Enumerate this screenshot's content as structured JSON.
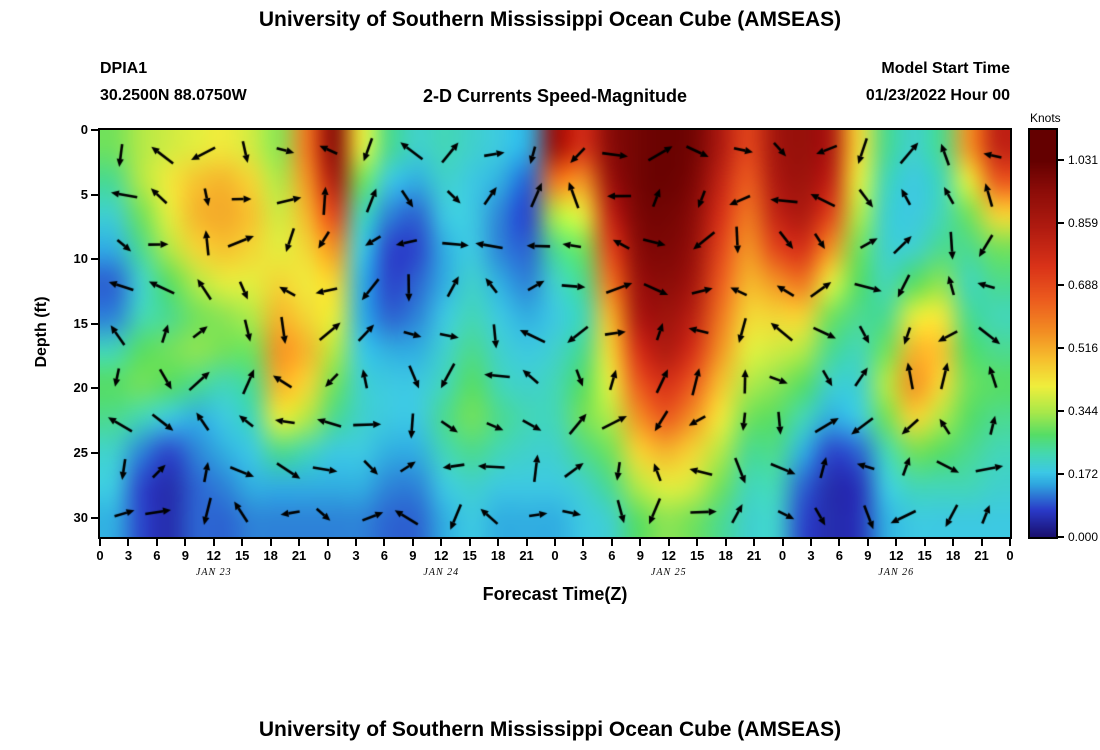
{
  "page": {
    "main_title": "University of Southern Mississippi Ocean Cube (AMSEAS)",
    "bottom_title": "University of Southern Mississippi Ocean Cube (AMSEAS)"
  },
  "header": {
    "station_id": "DPIA1",
    "coordinates": "30.2500N  88.0750W",
    "subtitle": "2-D Currents Speed-Magnitude",
    "model_start_label": "Model Start Time",
    "model_start_value": "01/23/2022 Hour 00"
  },
  "chart_data": {
    "type": "heatmap",
    "title": "2-D Currents Speed-Magnitude",
    "xlabel": "Forecast Time(Z)",
    "ylabel": "Depth (ft)",
    "units": "Knots",
    "x_range_hours": [
      0,
      96
    ],
    "x_tick_labels": [
      "0",
      "3",
      "6",
      "9",
      "12",
      "15",
      "18",
      "21",
      "0",
      "3",
      "6",
      "9",
      "12",
      "15",
      "18",
      "21",
      "0",
      "3",
      "6",
      "9",
      "12",
      "15",
      "18",
      "21",
      "0",
      "3",
      "6",
      "9",
      "12",
      "15",
      "18",
      "21",
      "0"
    ],
    "day_labels": [
      "JAN 23",
      "JAN 24",
      "JAN 25",
      "JAN 26"
    ],
    "day_label_center_hours": [
      12,
      36,
      60,
      84
    ],
    "y_ticks_ft": [
      0,
      5,
      10,
      15,
      20,
      25,
      30
    ],
    "depth_range_ft": [
      0,
      31.5
    ],
    "colorbar": {
      "title": "Knots",
      "ticks": [
        0.0,
        0.172,
        0.344,
        0.516,
        0.688,
        0.859,
        1.031
      ],
      "value_max": 1.031,
      "bar_max": 1.113
    },
    "colormap_stops": [
      [
        0.0,
        "#191070"
      ],
      [
        0.07,
        "#2a3ac8"
      ],
      [
        0.14,
        "#2fa8e0"
      ],
      [
        0.17,
        "#3cc8e6"
      ],
      [
        0.22,
        "#44d8b0"
      ],
      [
        0.27,
        "#55dd66"
      ],
      [
        0.33,
        "#a8e84a"
      ],
      [
        0.4,
        "#f0ee3c"
      ],
      [
        0.47,
        "#f6c02e"
      ],
      [
        0.55,
        "#f28a22"
      ],
      [
        0.63,
        "#ec5b1e"
      ],
      [
        0.72,
        "#d93218"
      ],
      [
        0.82,
        "#b01b10"
      ],
      [
        0.92,
        "#8c0c08"
      ],
      [
        1.0,
        "#640000"
      ]
    ],
    "grid": {
      "cols": 33,
      "rows": 12,
      "hours_step": 3,
      "row_depths_ft": [
        0,
        3,
        6,
        9,
        12,
        15,
        18,
        21,
        24,
        27,
        30,
        32
      ],
      "values": [
        [
          0.3,
          0.35,
          0.38,
          0.4,
          0.42,
          0.38,
          0.32,
          0.6,
          0.95,
          0.4,
          0.25,
          0.2,
          0.22,
          0.2,
          0.18,
          0.15,
          0.9,
          0.75,
          0.95,
          1.0,
          1.02,
          1.0,
          0.85,
          0.7,
          0.88,
          0.92,
          0.85,
          0.45,
          0.25,
          0.2,
          0.25,
          0.55,
          0.8
        ],
        [
          0.25,
          0.35,
          0.42,
          0.48,
          0.5,
          0.45,
          0.35,
          0.55,
          0.85,
          0.3,
          0.18,
          0.15,
          0.2,
          0.18,
          0.15,
          0.1,
          0.6,
          0.55,
          0.9,
          1.0,
          1.02,
          0.98,
          0.8,
          0.65,
          0.85,
          0.9,
          0.8,
          0.4,
          0.22,
          0.18,
          0.22,
          0.4,
          0.65
        ],
        [
          0.2,
          0.3,
          0.4,
          0.5,
          0.52,
          0.48,
          0.38,
          0.5,
          0.7,
          0.22,
          0.12,
          0.1,
          0.18,
          0.18,
          0.12,
          0.08,
          0.35,
          0.4,
          0.8,
          0.98,
          1.0,
          0.95,
          0.75,
          0.6,
          0.8,
          0.85,
          0.7,
          0.35,
          0.2,
          0.18,
          0.22,
          0.3,
          0.45
        ],
        [
          0.15,
          0.25,
          0.35,
          0.45,
          0.48,
          0.45,
          0.4,
          0.45,
          0.55,
          0.18,
          0.08,
          0.08,
          0.15,
          0.18,
          0.12,
          0.1,
          0.25,
          0.3,
          0.7,
          0.95,
          0.98,
          0.92,
          0.7,
          0.55,
          0.7,
          0.75,
          0.55,
          0.3,
          0.2,
          0.2,
          0.25,
          0.25,
          0.3
        ],
        [
          0.1,
          0.2,
          0.28,
          0.35,
          0.4,
          0.4,
          0.45,
          0.42,
          0.45,
          0.15,
          0.08,
          0.1,
          0.15,
          0.2,
          0.15,
          0.12,
          0.2,
          0.25,
          0.6,
          0.9,
          0.95,
          0.88,
          0.65,
          0.5,
          0.55,
          0.6,
          0.4,
          0.28,
          0.22,
          0.28,
          0.32,
          0.22,
          0.25
        ],
        [
          0.12,
          0.22,
          0.25,
          0.3,
          0.32,
          0.35,
          0.5,
          0.45,
          0.4,
          0.15,
          0.1,
          0.12,
          0.18,
          0.22,
          0.18,
          0.15,
          0.18,
          0.22,
          0.5,
          0.85,
          0.9,
          0.82,
          0.6,
          0.45,
          0.45,
          0.45,
          0.3,
          0.25,
          0.25,
          0.4,
          0.42,
          0.25,
          0.22
        ],
        [
          0.22,
          0.28,
          0.3,
          0.32,
          0.3,
          0.3,
          0.55,
          0.5,
          0.35,
          0.18,
          0.15,
          0.15,
          0.2,
          0.25,
          0.2,
          0.18,
          0.2,
          0.25,
          0.45,
          0.75,
          0.85,
          0.75,
          0.55,
          0.4,
          0.38,
          0.35,
          0.25,
          0.22,
          0.3,
          0.5,
          0.48,
          0.28,
          0.25
        ],
        [
          0.28,
          0.3,
          0.28,
          0.25,
          0.22,
          0.25,
          0.5,
          0.45,
          0.3,
          0.2,
          0.18,
          0.18,
          0.22,
          0.28,
          0.22,
          0.2,
          0.22,
          0.28,
          0.4,
          0.65,
          0.75,
          0.65,
          0.48,
          0.35,
          0.32,
          0.28,
          0.2,
          0.2,
          0.35,
          0.55,
          0.45,
          0.3,
          0.28
        ],
        [
          0.25,
          0.22,
          0.18,
          0.15,
          0.18,
          0.22,
          0.4,
          0.35,
          0.25,
          0.2,
          0.18,
          0.18,
          0.25,
          0.3,
          0.25,
          0.22,
          0.22,
          0.3,
          0.35,
          0.55,
          0.65,
          0.55,
          0.42,
          0.3,
          0.28,
          0.22,
          0.15,
          0.18,
          0.3,
          0.45,
          0.35,
          0.28,
          0.25
        ],
        [
          0.2,
          0.12,
          0.08,
          0.12,
          0.15,
          0.18,
          0.25,
          0.22,
          0.18,
          0.18,
          0.15,
          0.15,
          0.22,
          0.25,
          0.22,
          0.2,
          0.2,
          0.25,
          0.3,
          0.45,
          0.5,
          0.45,
          0.35,
          0.25,
          0.25,
          0.15,
          0.08,
          0.1,
          0.22,
          0.3,
          0.28,
          0.25,
          0.22
        ],
        [
          0.18,
          0.08,
          0.05,
          0.1,
          0.12,
          0.15,
          0.15,
          0.15,
          0.15,
          0.15,
          0.12,
          0.12,
          0.18,
          0.2,
          0.18,
          0.18,
          0.18,
          0.2,
          0.25,
          0.35,
          0.4,
          0.38,
          0.3,
          0.22,
          0.22,
          0.1,
          0.05,
          0.06,
          0.18,
          0.22,
          0.22,
          0.22,
          0.2
        ],
        [
          0.15,
          0.08,
          0.05,
          0.1,
          0.1,
          0.12,
          0.12,
          0.12,
          0.12,
          0.12,
          0.1,
          0.1,
          0.15,
          0.18,
          0.15,
          0.15,
          0.15,
          0.18,
          0.2,
          0.28,
          0.32,
          0.3,
          0.25,
          0.2,
          0.2,
          0.08,
          0.05,
          0.06,
          0.15,
          0.18,
          0.18,
          0.18,
          0.18
        ]
      ]
    },
    "arrows": {
      "overlay": "current direction vector field",
      "cols": 22,
      "rows": 9,
      "color": "#000000",
      "base_length": 23
    }
  }
}
